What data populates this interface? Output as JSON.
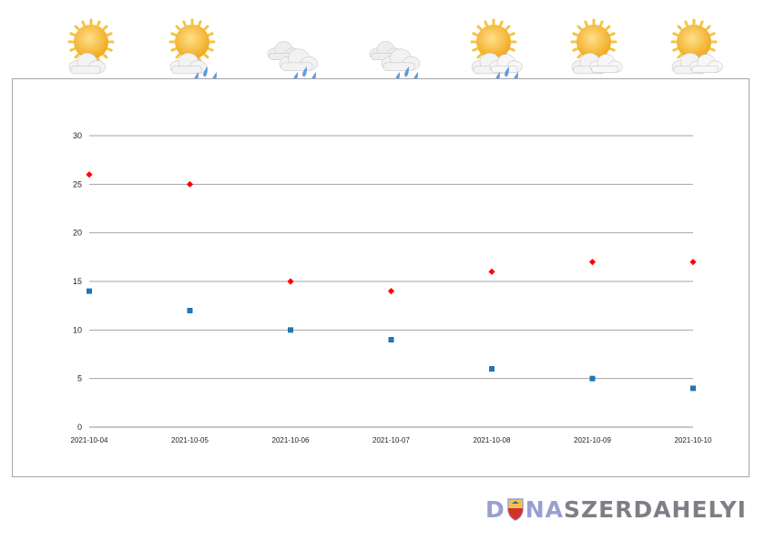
{
  "weather": {
    "icons": [
      "sun-cloud-icon",
      "sun-cloud-rain-icon",
      "cloud-rain-icon",
      "cloud-rain-icon",
      "sun-cloud-rain-icon",
      "sun-cloud-icon",
      "sun-cloud-icon"
    ]
  },
  "logo": {
    "part_a": "D",
    "part_a2": "NA",
    "part_b": "SZERDAHELYI",
    "emblem": "shield-emblem-icon"
  },
  "colors": {
    "max_series": "#ff0000",
    "min_series": "#1f77b4",
    "grid": "#a6a6a6",
    "logo_accent": "#9a9fd1",
    "logo_gray": "#7e7e86"
  },
  "chart_data": {
    "type": "scatter",
    "categories": [
      "2021-10-04",
      "2021-10-05",
      "2021-10-06",
      "2021-10-07",
      "2021-10-08",
      "2021-10-09",
      "2021-10-10"
    ],
    "series": [
      {
        "values": [
          26,
          25,
          15,
          14,
          16,
          17,
          17
        ],
        "color": "#ff0000",
        "marker": "diamond"
      },
      {
        "values": [
          14,
          12,
          10,
          9,
          6,
          5,
          4
        ],
        "color": "#1f77b4",
        "marker": "square"
      }
    ],
    "yticks": [
      "0",
      "5",
      "10",
      "15",
      "20",
      "25",
      "30"
    ],
    "ylim": [
      0,
      30
    ],
    "grid": true,
    "legend": "none"
  }
}
